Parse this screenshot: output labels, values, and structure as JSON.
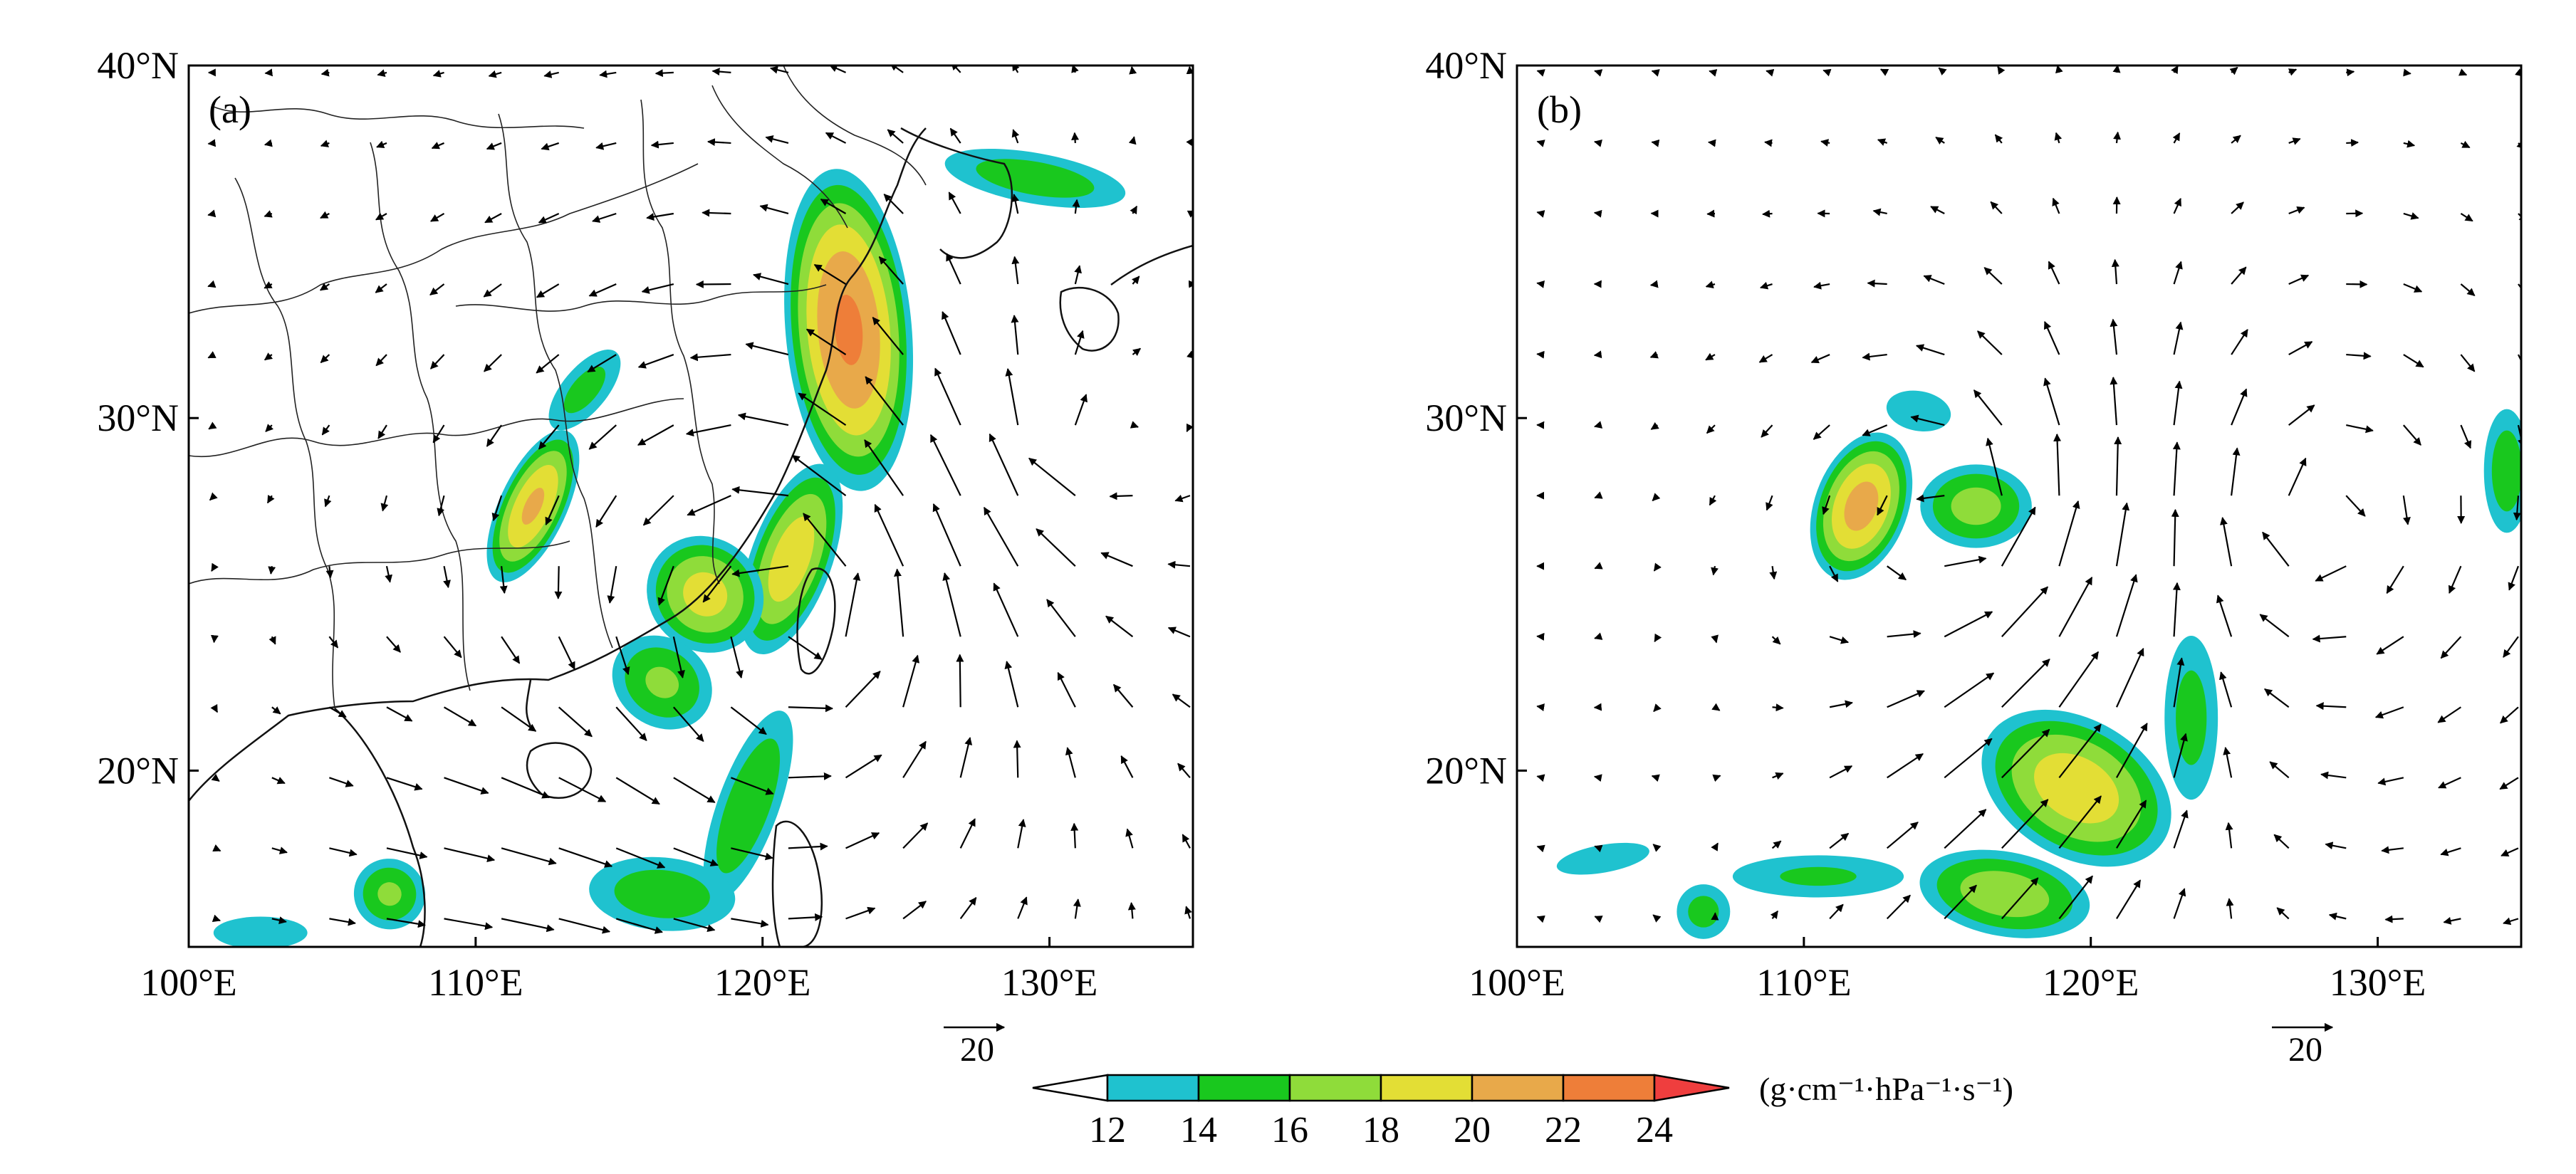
{
  "palette": {
    "c12": "#1fc2cf",
    "c14": "#19c81e",
    "c16": "#8fdc3a",
    "c18": "#e3de35",
    "c20": "#e8a94a",
    "c22": "#ee7e39",
    "c24": "#ef3e3e",
    "coast": "#111111",
    "arrow": "#000000"
  },
  "axes": {
    "lat_min": 15,
    "lat_max": 40,
    "lon_min": 100,
    "lon_max": 135,
    "lat_ticks": [
      20,
      30,
      40
    ],
    "lon_ticks": [
      100,
      110,
      120,
      130
    ],
    "lat_tick_labels": [
      "20°N",
      "30°N",
      "40°N"
    ],
    "lon_tick_labels": [
      "100°E",
      "110°E",
      "120°E",
      "130°E"
    ]
  },
  "panels": [
    {
      "label": "(a)",
      "reference_vector_label": "20",
      "flux_features": [
        {
          "lon": 123.0,
          "lat": 32.5,
          "peak": 22.5,
          "rx": 2.4,
          "ry": 5.0,
          "angle": -5
        },
        {
          "lon": 121.0,
          "lat": 26.0,
          "peak": 19.5,
          "rx": 1.6,
          "ry": 3.2,
          "angle": 20
        },
        {
          "lon": 118.0,
          "lat": 25.0,
          "peak": 19.0,
          "rx": 2.4,
          "ry": 1.8,
          "angle": 45
        },
        {
          "lon": 116.5,
          "lat": 22.5,
          "peak": 16.5,
          "rx": 2.2,
          "ry": 1.5,
          "angle": 35
        },
        {
          "lon": 112.0,
          "lat": 27.5,
          "peak": 20.5,
          "rx": 1.3,
          "ry": 2.6,
          "angle": 25
        },
        {
          "lon": 113.8,
          "lat": 30.8,
          "peak": 15.0,
          "rx": 1.0,
          "ry": 1.8,
          "angle": 40
        },
        {
          "lon": 119.5,
          "lat": 19.0,
          "peak": 16.0,
          "rx": 1.3,
          "ry": 3.5,
          "angle": 20
        },
        {
          "lon": 116.5,
          "lat": 16.5,
          "peak": 15.5,
          "rx": 3.2,
          "ry": 1.3,
          "angle": 5
        },
        {
          "lon": 129.5,
          "lat": 36.8,
          "peak": 15.5,
          "rx": 4.0,
          "ry": 0.9,
          "angle": 10
        },
        {
          "lon": 107.0,
          "lat": 16.5,
          "peak": 16.5,
          "rx": 1.5,
          "ry": 1.2,
          "angle": 30
        },
        {
          "lon": 102.5,
          "lat": 15.4,
          "peak": 13.5,
          "rx": 2.5,
          "ry": 0.7,
          "angle": 0
        }
      ],
      "wind_features": [
        {
          "type": "cyclone",
          "lon": 121.5,
          "lat": 24.5,
          "strength": 7.0,
          "radius": 10
        },
        {
          "type": "anticyclone",
          "lon": 131.0,
          "lat": 28.5,
          "strength": 4.0,
          "radius": 8
        },
        {
          "type": "jet",
          "lon": 110.0,
          "lat": 17.5,
          "u": 6.0,
          "v": 0.5,
          "radius": 5
        }
      ]
    },
    {
      "label": "(b)",
      "reference_vector_label": "20",
      "flux_features": [
        {
          "lon": 112.0,
          "lat": 27.5,
          "peak": 21.0,
          "rx": 1.8,
          "ry": 2.4,
          "angle": 20
        },
        {
          "lon": 116.0,
          "lat": 27.5,
          "peak": 17.0,
          "rx": 2.3,
          "ry": 1.4,
          "angle": 0
        },
        {
          "lon": 114.0,
          "lat": 30.2,
          "peak": 14.0,
          "rx": 1.6,
          "ry": 0.8,
          "angle": 10
        },
        {
          "lon": 119.5,
          "lat": 19.5,
          "peak": 19.5,
          "rx": 4.0,
          "ry": 2.2,
          "angle": 30
        },
        {
          "lon": 117.0,
          "lat": 16.5,
          "peak": 17.5,
          "rx": 3.5,
          "ry": 1.4,
          "angle": 10
        },
        {
          "lon": 123.5,
          "lat": 21.5,
          "peak": 15.0,
          "rx": 1.2,
          "ry": 3.0,
          "angle": 0
        },
        {
          "lon": 110.5,
          "lat": 17.0,
          "peak": 14.5,
          "rx": 4.0,
          "ry": 0.8,
          "angle": 0
        },
        {
          "lon": 103.0,
          "lat": 17.5,
          "peak": 13.5,
          "rx": 2.5,
          "ry": 0.6,
          "angle": -10
        },
        {
          "lon": 106.5,
          "lat": 16.0,
          "peak": 15.0,
          "rx": 1.2,
          "ry": 1.0,
          "angle": 0
        },
        {
          "lon": 134.5,
          "lat": 28.5,
          "peak": 15.5,
          "rx": 1.0,
          "ry": 2.2,
          "angle": 0
        }
      ],
      "wind_features": [
        {
          "type": "cyclone",
          "lon": 115.5,
          "lat": 27.0,
          "strength": 5.0,
          "radius": 6
        },
        {
          "type": "anticyclone",
          "lon": 128.0,
          "lat": 27.0,
          "strength": 4.5,
          "radius": 9
        },
        {
          "type": "jet",
          "lon": 118.0,
          "lat": 18.5,
          "u": 6.0,
          "v": 5.0,
          "radius": 5
        }
      ]
    }
  ],
  "colorbar": {
    "tick_labels": [
      "12",
      "14",
      "16",
      "18",
      "20",
      "22",
      "24"
    ],
    "levels": [
      12,
      14,
      16,
      18,
      20,
      22,
      24
    ],
    "units": "(g·cm⁻¹·hPa⁻¹·s⁻¹)"
  }
}
